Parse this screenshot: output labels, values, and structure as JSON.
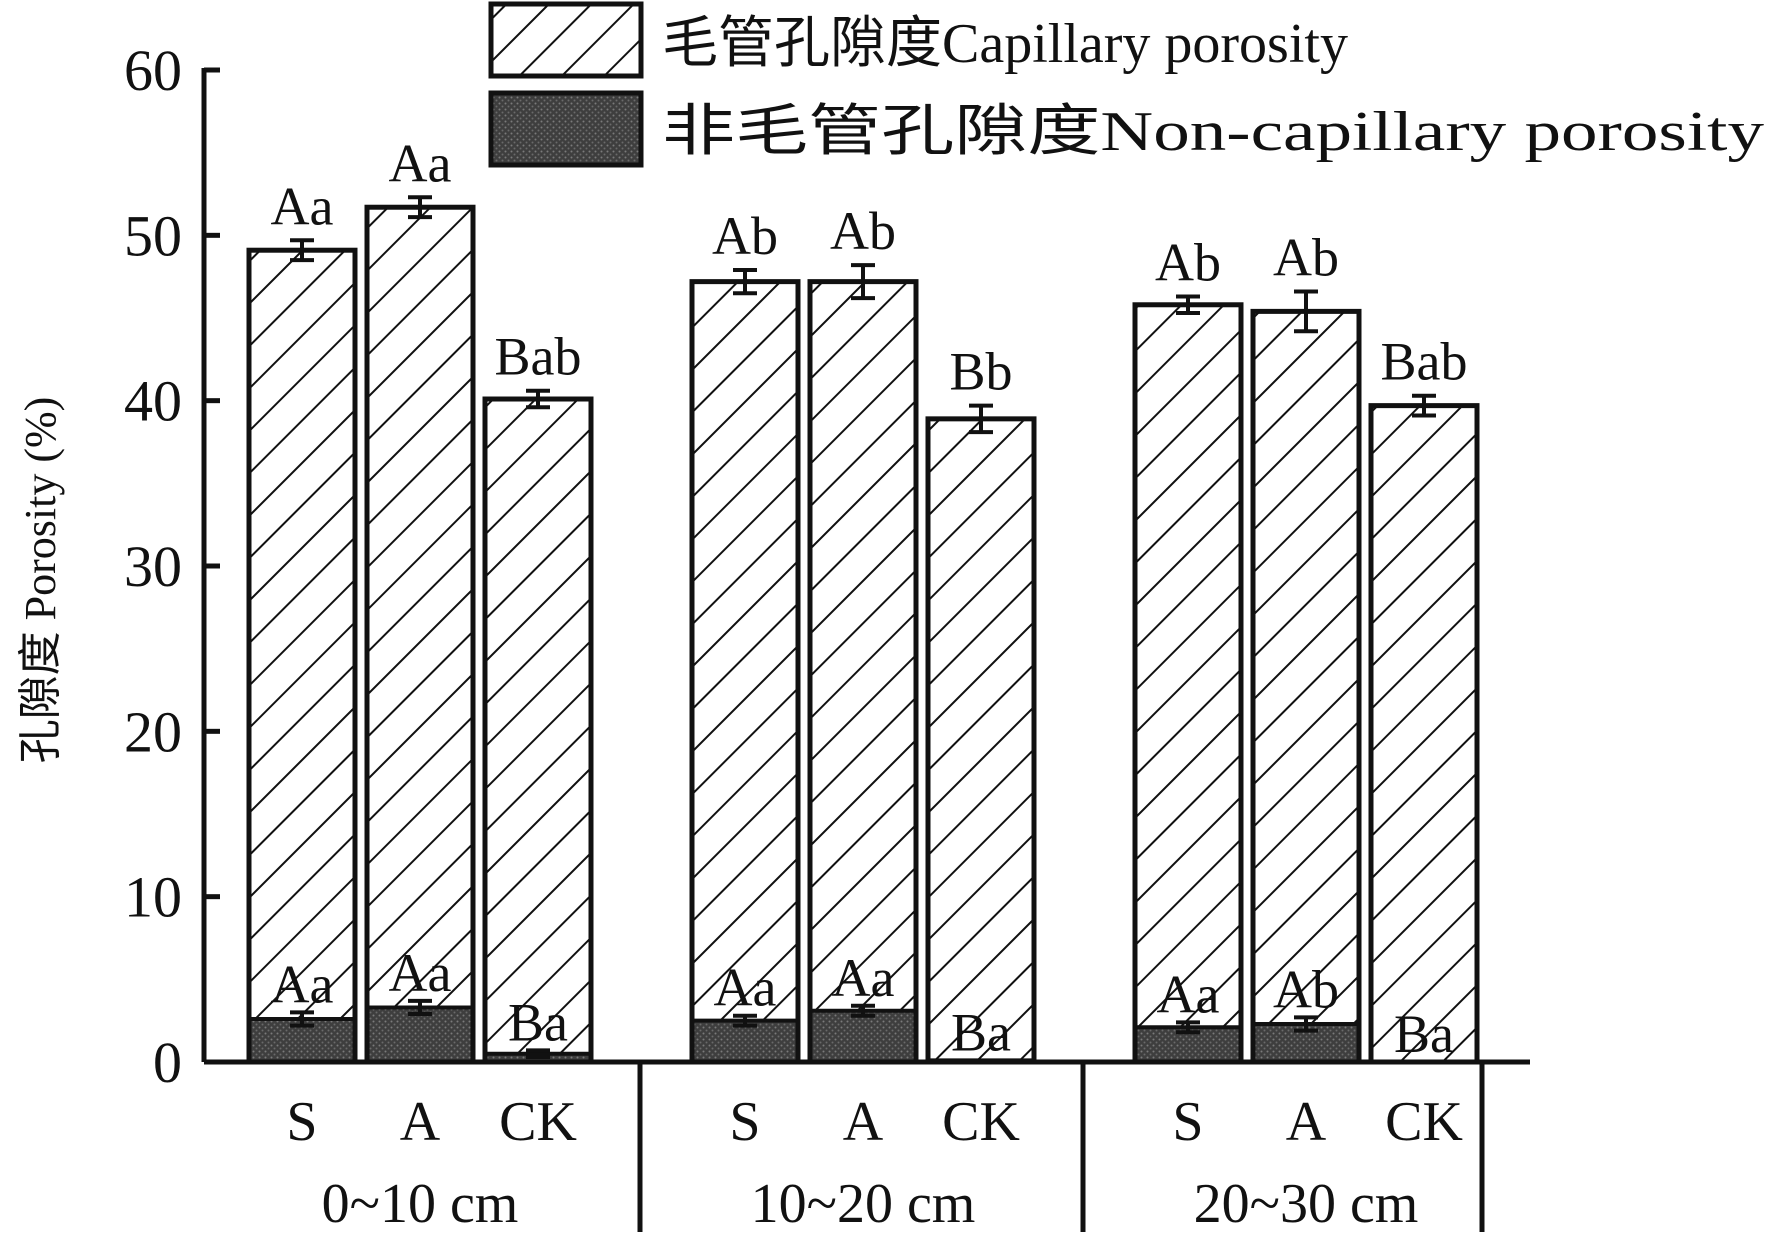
{
  "chart_data": {
    "type": "bar",
    "stacked": true,
    "ylabel": "孔隙度 Porosity (%)",
    "ylim": [
      0,
      60
    ],
    "yticks": [
      0,
      10,
      20,
      30,
      40,
      50,
      60
    ],
    "grid": false,
    "legend_position": "top-right",
    "groups": [
      {
        "label": "0~10 cm",
        "bars": [
          {
            "category": "S",
            "noncap": 2.6,
            "noncap_err": 0.4,
            "noncap_letter": "Aa",
            "total": 49.1,
            "total_err": 0.6,
            "total_letter": "Aa"
          },
          {
            "category": "A",
            "noncap": 3.3,
            "noncap_err": 0.4,
            "noncap_letter": "Aa",
            "total": 51.7,
            "total_err": 0.6,
            "total_letter": "Aa"
          },
          {
            "category": "CK",
            "noncap": 0.5,
            "noncap_err": 0.2,
            "noncap_letter": "Ba",
            "total": 40.1,
            "total_err": 0.5,
            "total_letter": "Bab"
          }
        ]
      },
      {
        "label": "10~20 cm",
        "bars": [
          {
            "category": "S",
            "noncap": 2.5,
            "noncap_err": 0.3,
            "noncap_letter": "Aa",
            "total": 47.2,
            "total_err": 0.7,
            "total_letter": "Ab"
          },
          {
            "category": "A",
            "noncap": 3.1,
            "noncap_err": 0.3,
            "noncap_letter": "Aa",
            "total": 47.2,
            "total_err": 1.0,
            "total_letter": "Ab"
          },
          {
            "category": "CK",
            "noncap": 0.1,
            "noncap_err": 0.0,
            "noncap_letter": "Ba",
            "total": 38.9,
            "total_err": 0.8,
            "total_letter": "Bb"
          }
        ]
      },
      {
        "label": "20~30 cm",
        "bars": [
          {
            "category": "S",
            "noncap": 2.1,
            "noncap_err": 0.3,
            "noncap_letter": "Aa",
            "total": 45.8,
            "total_err": 0.5,
            "total_letter": "Ab"
          },
          {
            "category": "A",
            "noncap": 2.3,
            "noncap_err": 0.4,
            "noncap_letter": "Ab",
            "total": 45.4,
            "total_err": 1.2,
            "total_letter": "Ab"
          },
          {
            "category": "CK",
            "noncap": 0.0,
            "noncap_err": 0.0,
            "noncap_letter": "Ba",
            "total": 39.7,
            "total_err": 0.6,
            "total_letter": "Bab"
          }
        ]
      }
    ],
    "series": [
      {
        "name": "毛管孔隙度Capillary porosity",
        "pattern": "diagonal-hatch",
        "color": "#ffffff"
      },
      {
        "name": "非毛管孔隙度Non-capillary porosity",
        "pattern": "stipple",
        "color": "#4a4a4a"
      }
    ]
  }
}
